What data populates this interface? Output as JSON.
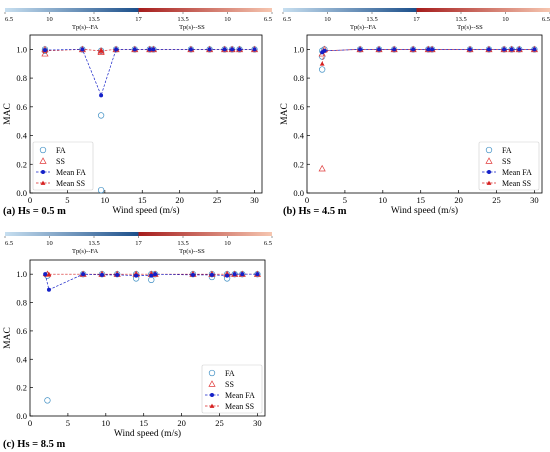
{
  "colors": {
    "fa_marker": "#3f8fc4",
    "ss_marker": "#e03a3a",
    "mean_fa": "#1420c8",
    "mean_ss": "#d62020",
    "cb_fa_dark": "#1c4f8a",
    "cb_fa_light": "#c7dff0",
    "cb_ss_dark": "#a51c1c",
    "cb_ss_light": "#f6c6b0"
  },
  "chart_data": [
    {
      "type": "scatter",
      "panel": "a",
      "caption": "(a) Hs = 0.5 m",
      "xlabel": "Wind speed (m/s)",
      "ylabel": "MAC",
      "xlim": [
        0,
        31
      ],
      "ylim": [
        0,
        1.1
      ],
      "xticks": [
        "0",
        "5",
        "10",
        "15",
        "20",
        "25",
        "30"
      ],
      "yticks": [
        "0.0",
        "0.2",
        "0.4",
        "0.6",
        "0.8",
        "1.0"
      ],
      "colorbar": {
        "ticks": [
          "6.5",
          "10",
          "13.5",
          "17",
          "13.5",
          "10",
          "6.5"
        ],
        "label_fa": "Tp(s)--FA",
        "label_ss": "Tp(s)--SS"
      },
      "legend": {
        "position": "lower-left",
        "entries": [
          "FA",
          "SS",
          "Mean FA",
          "Mean SS"
        ]
      },
      "series": [
        {
          "name": "FA",
          "marker": "circle",
          "x": [
            2,
            2,
            7,
            9.5,
            9.5,
            9.5,
            11.5,
            14,
            16,
            16.5,
            21.5,
            24,
            26,
            27,
            28,
            30
          ],
          "y": [
            0.99,
            1.0,
            1.0,
            0.54,
            0.02,
            0.99,
            1.0,
            1.0,
            1.0,
            1.0,
            1.0,
            1.0,
            1.0,
            1.0,
            1.0,
            1.0
          ]
        },
        {
          "name": "SS",
          "marker": "triangle",
          "x": [
            2,
            2,
            7,
            9.5,
            9.5,
            11.5,
            14,
            16,
            16.5,
            21.5,
            24,
            26,
            27,
            28,
            30
          ],
          "y": [
            0.97,
            1.0,
            1.0,
            0.99,
            0.98,
            1.0,
            1.0,
            1.0,
            1.0,
            1.0,
            1.0,
            1.0,
            1.0,
            1.0,
            1.0
          ]
        },
        {
          "name": "Mean FA",
          "marker": "filled-circle",
          "line": true,
          "x": [
            2,
            7,
            9.5,
            11.5,
            14,
            16,
            16.5,
            21.5,
            24,
            26,
            27,
            28,
            30
          ],
          "y": [
            0.995,
            1.0,
            0.68,
            1.0,
            1.0,
            1.0,
            1.0,
            1.0,
            1.0,
            1.0,
            1.0,
            1.0,
            1.0
          ]
        },
        {
          "name": "Mean SS",
          "marker": "filled-triangle",
          "line": true,
          "x": [
            2,
            7,
            9.5,
            11.5,
            14,
            16,
            16.5,
            21.5,
            24,
            26,
            27,
            28,
            30
          ],
          "y": [
            0.99,
            1.0,
            0.99,
            1.0,
            1.0,
            1.0,
            1.0,
            1.0,
            1.0,
            1.0,
            1.0,
            1.0,
            1.0
          ]
        }
      ]
    },
    {
      "type": "scatter",
      "panel": "b",
      "caption": "(b) Hs = 4.5 m",
      "xlabel": "Wind speed (m/s)",
      "ylabel": "MAC",
      "xlim": [
        0,
        31
      ],
      "ylim": [
        0,
        1.1
      ],
      "xticks": [
        "0",
        "5",
        "10",
        "15",
        "20",
        "25",
        "30"
      ],
      "yticks": [
        "0.0",
        "0.2",
        "0.4",
        "0.6",
        "0.8",
        "1.0"
      ],
      "colorbar": {
        "ticks": [
          "6.5",
          "10",
          "13.5",
          "17",
          "13.5",
          "10",
          "6.5"
        ],
        "label_fa": "Tp(s)--FA",
        "label_ss": "Tp(s)--SS"
      },
      "legend": {
        "position": "lower-right",
        "entries": [
          "FA",
          "SS",
          "Mean FA",
          "Mean SS"
        ]
      },
      "series": [
        {
          "name": "FA",
          "marker": "circle",
          "x": [
            2,
            2,
            2,
            2.3,
            7,
            9.5,
            11.5,
            14,
            16,
            16.5,
            21.5,
            24,
            26,
            27,
            28,
            30
          ],
          "y": [
            0.86,
            0.95,
            0.99,
            1.0,
            1.0,
            1.0,
            1.0,
            1.0,
            1.0,
            1.0,
            1.0,
            1.0,
            1.0,
            1.0,
            1.0,
            1.0
          ]
        },
        {
          "name": "SS",
          "marker": "triangle",
          "x": [
            2,
            2,
            2.3,
            7,
            9.5,
            11.5,
            14,
            16,
            16.5,
            21.5,
            24,
            26,
            27,
            28,
            30
          ],
          "y": [
            0.17,
            0.97,
            1.0,
            1.0,
            1.0,
            1.0,
            1.0,
            1.0,
            1.0,
            1.0,
            1.0,
            1.0,
            1.0,
            1.0,
            1.0
          ]
        },
        {
          "name": "Mean FA",
          "marker": "filled-circle",
          "line": true,
          "x": [
            2,
            2.3,
            7,
            9.5,
            11.5,
            14,
            16,
            16.5,
            21.5,
            24,
            26,
            27,
            28,
            30
          ],
          "y": [
            0.98,
            0.99,
            1.0,
            1.0,
            1.0,
            1.0,
            1.0,
            1.0,
            1.0,
            1.0,
            1.0,
            1.0,
            1.0,
            1.0
          ]
        },
        {
          "name": "Mean SS",
          "marker": "filled-triangle",
          "line": true,
          "x": [
            2,
            2.3,
            7,
            9.5,
            11.5,
            14,
            16,
            16.5,
            21.5,
            24,
            26,
            27,
            28,
            30
          ],
          "y": [
            0.9,
            0.99,
            1.0,
            1.0,
            1.0,
            1.0,
            1.0,
            1.0,
            1.0,
            1.0,
            1.0,
            1.0,
            1.0,
            1.0
          ]
        }
      ]
    },
    {
      "type": "scatter",
      "panel": "c",
      "caption": "(c) Hs = 8.5 m",
      "xlabel": "Wind speed (m/s)",
      "ylabel": "MAC",
      "xlim": [
        0,
        31
      ],
      "ylim": [
        0,
        1.1
      ],
      "xticks": [
        "0",
        "5",
        "10",
        "15",
        "20",
        "25",
        "30"
      ],
      "yticks": [
        "0.0",
        "0.2",
        "0.4",
        "0.6",
        "0.8",
        "1.0"
      ],
      "colorbar": {
        "ticks": [
          "6.5",
          "10",
          "13.5",
          "17",
          "13.5",
          "10",
          "6.5"
        ],
        "label_fa": "Tp(s)--FA",
        "label_ss": "Tp(s)--SS"
      },
      "legend": {
        "position": "lower-right",
        "entries": [
          "FA",
          "SS",
          "Mean FA",
          "Mean SS"
        ]
      },
      "series": [
        {
          "name": "FA",
          "marker": "circle",
          "x": [
            2.3,
            2.3,
            7,
            9.5,
            11.5,
            14,
            14,
            16,
            16,
            16.5,
            21.5,
            24,
            24,
            26,
            26,
            27,
            28,
            30
          ],
          "y": [
            0.11,
            0.99,
            1.0,
            1.0,
            1.0,
            0.97,
            1.0,
            0.96,
            1.0,
            1.0,
            1.0,
            0.98,
            1.0,
            0.97,
            1.0,
            1.0,
            1.0,
            1.0
          ]
        },
        {
          "name": "SS",
          "marker": "triangle",
          "x": [
            2.3,
            7,
            9.5,
            11.5,
            14,
            16,
            16.5,
            21.5,
            24,
            26,
            27,
            28,
            30
          ],
          "y": [
            1.0,
            1.0,
            1.0,
            1.0,
            1.0,
            1.0,
            1.0,
            1.0,
            1.0,
            1.0,
            1.0,
            1.0,
            1.0
          ]
        },
        {
          "name": "Mean FA",
          "marker": "filled-circle",
          "line": true,
          "x": [
            2,
            2.5,
            7,
            9.5,
            11.5,
            14,
            16,
            16.5,
            21.5,
            24,
            26,
            27,
            28,
            30
          ],
          "y": [
            1.0,
            0.89,
            1.0,
            0.995,
            0.995,
            0.99,
            0.99,
            1.0,
            0.995,
            0.995,
            0.99,
            1.0,
            1.0,
            1.0
          ]
        },
        {
          "name": "Mean SS",
          "marker": "filled-triangle",
          "line": true,
          "x": [
            2,
            2.5,
            7,
            9.5,
            11.5,
            14,
            16,
            16.5,
            21.5,
            24,
            26,
            27,
            28,
            30
          ],
          "y": [
            1.0,
            1.0,
            1.0,
            1.0,
            1.0,
            1.0,
            1.0,
            1.0,
            1.0,
            1.0,
            1.0,
            1.0,
            1.0,
            1.0
          ]
        }
      ]
    }
  ]
}
